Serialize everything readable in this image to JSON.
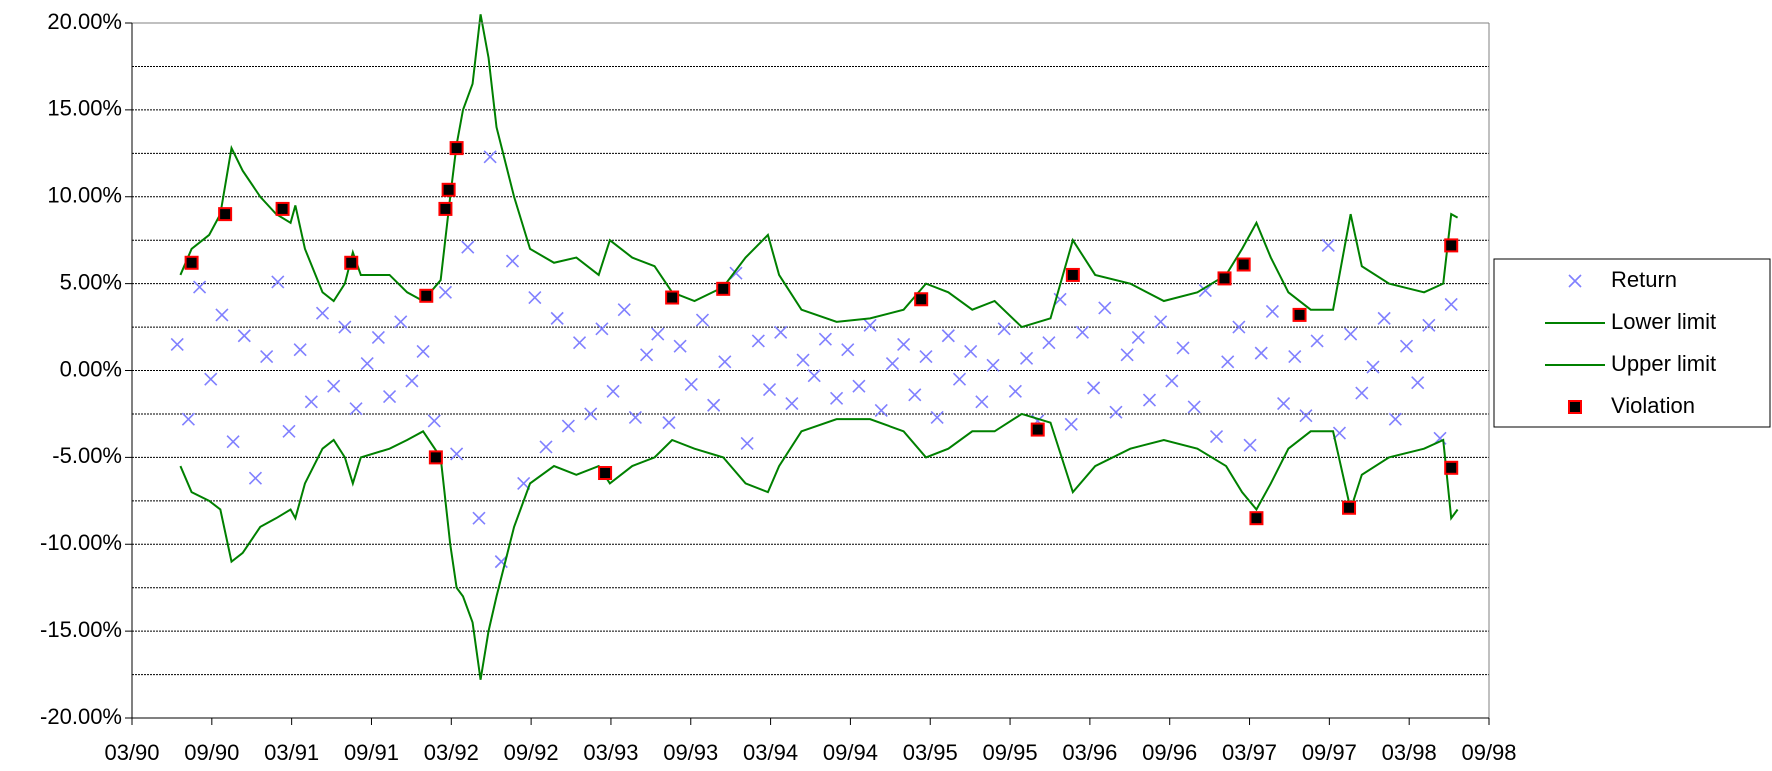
{
  "chart_data": {
    "type": "scatter",
    "xlim": [
      1990.1667,
      1998.6667
    ],
    "xticks": [
      {
        "value": 1990.1667,
        "label": "03/90"
      },
      {
        "value": 1990.6667,
        "label": "09/90"
      },
      {
        "value": 1991.1667,
        "label": "03/91"
      },
      {
        "value": 1991.6667,
        "label": "09/91"
      },
      {
        "value": 1992.1667,
        "label": "03/92"
      },
      {
        "value": 1992.6667,
        "label": "09/92"
      },
      {
        "value": 1993.1667,
        "label": "03/93"
      },
      {
        "value": 1993.6667,
        "label": "09/93"
      },
      {
        "value": 1994.1667,
        "label": "03/94"
      },
      {
        "value": 1994.6667,
        "label": "09/94"
      },
      {
        "value": 1995.1667,
        "label": "03/95"
      },
      {
        "value": 1995.6667,
        "label": "09/95"
      },
      {
        "value": 1996.1667,
        "label": "03/96"
      },
      {
        "value": 1996.6667,
        "label": "09/96"
      },
      {
        "value": 1997.1667,
        "label": "03/97"
      },
      {
        "value": 1997.6667,
        "label": "09/97"
      },
      {
        "value": 1998.1667,
        "label": "03/98"
      },
      {
        "value": 1998.6667,
        "label": "09/98"
      }
    ],
    "ylim": [
      -20,
      20
    ],
    "yticks": [
      {
        "value": 20,
        "label": "20.00%"
      },
      {
        "value": 15,
        "label": "15.00%"
      },
      {
        "value": 10,
        "label": "10.00%"
      },
      {
        "value": 5,
        "label": "5.00%"
      },
      {
        "value": 0,
        "label": "0.00%"
      },
      {
        "value": -5,
        "label": "-5.00%"
      },
      {
        "value": -10,
        "label": "-10.00%"
      },
      {
        "value": -15,
        "label": "-15.00%"
      },
      {
        "value": -20,
        "label": "-20.00%"
      }
    ],
    "minor_yticks": [
      17.5,
      12.5,
      7.5,
      2.5,
      -2.5,
      -7.5,
      -12.5,
      -17.5
    ],
    "grid": true,
    "legend": "right",
    "series": [
      {
        "name": "Return",
        "kind": "cross",
        "color": "#8080ff",
        "x": [
          1990.45,
          1990.52,
          1990.59,
          1990.66,
          1990.73,
          1990.8,
          1990.87,
          1990.94,
          1991.01,
          1991.08,
          1991.15,
          1991.22,
          1991.29,
          1991.36,
          1991.43,
          1991.5,
          1991.57,
          1991.64,
          1991.71,
          1991.78,
          1991.85,
          1991.92,
          1991.99,
          1992.06,
          1992.13,
          1992.2,
          1992.27,
          1992.34,
          1992.41,
          1992.48,
          1992.55,
          1992.62,
          1992.69,
          1992.76,
          1992.83,
          1992.9,
          1992.97,
          1993.04,
          1993.11,
          1993.18,
          1993.25,
          1993.32,
          1993.39,
          1993.46,
          1993.53,
          1993.6,
          1993.67,
          1993.74,
          1993.81,
          1993.88,
          1993.95,
          1994.02,
          1994.09,
          1994.16,
          1994.23,
          1994.3,
          1994.37,
          1994.44,
          1994.51,
          1994.58,
          1994.65,
          1994.72,
          1994.79,
          1994.86,
          1994.93,
          1995,
          1995.07,
          1995.14,
          1995.21,
          1995.28,
          1995.35,
          1995.42,
          1995.49,
          1995.56,
          1995.63,
          1995.7,
          1995.77,
          1995.84,
          1995.91,
          1995.98,
          1996.05,
          1996.12,
          1996.19,
          1996.26,
          1996.33,
          1996.4,
          1996.47,
          1996.54,
          1996.61,
          1996.68,
          1996.75,
          1996.82,
          1996.89,
          1996.96,
          1997.03,
          1997.1,
          1997.17,
          1997.24,
          1997.31,
          1997.38,
          1997.45,
          1997.52,
          1997.59,
          1997.66,
          1997.73,
          1997.8,
          1997.87,
          1997.94,
          1998.01,
          1998.08,
          1998.15,
          1998.22,
          1998.29,
          1998.36,
          1998.43
        ],
        "values": [
          1.5,
          -2.8,
          4.8,
          -0.5,
          3.2,
          -4.1,
          2.0,
          -6.2,
          0.8,
          5.1,
          -3.5,
          1.2,
          -1.8,
          3.3,
          -0.9,
          2.5,
          -2.2,
          0.4,
          1.9,
          -1.5,
          2.8,
          -0.6,
          1.1,
          -2.9,
          4.5,
          -4.8,
          7.1,
          -8.5,
          12.3,
          -11.0,
          6.3,
          -6.5,
          4.2,
          -4.4,
          3.0,
          -3.2,
          1.6,
          -2.5,
          2.4,
          -1.2,
          3.5,
          -2.7,
          0.9,
          2.1,
          -3.0,
          1.4,
          -0.8,
          2.9,
          -2.0,
          0.5,
          5.6,
          -4.2,
          1.7,
          -1.1,
          2.2,
          -1.9,
          0.6,
          -0.3,
          1.8,
          -1.6,
          1.2,
          -0.9,
          2.6,
          -2.3,
          0.4,
          1.5,
          -1.4,
          0.8,
          -2.7,
          2.0,
          -0.5,
          1.1,
          -1.8,
          0.3,
          2.4,
          -1.2,
          0.7,
          -2.9,
          1.6,
          4.1,
          -3.1,
          2.2,
          -1.0,
          3.6,
          -2.4,
          0.9,
          1.9,
          -1.7,
          2.8,
          -0.6,
          1.3,
          -2.1,
          4.6,
          -3.8,
          0.5,
          2.5,
          -4.3,
          1.0,
          3.4,
          -1.9,
          0.8,
          -2.6,
          1.7,
          7.2,
          -3.6,
          2.1,
          -1.3,
          0.2,
          3.0,
          -2.8,
          1.4,
          -0.7,
          2.6,
          -3.9,
          3.8
        ]
      },
      {
        "name": "Lower limit",
        "kind": "line",
        "color": "#008000",
        "x": [
          1990.47,
          1990.54,
          1990.65,
          1990.72,
          1990.79,
          1990.86,
          1990.97,
          1991.07,
          1991.16,
          1991.19,
          1991.25,
          1991.36,
          1991.43,
          1991.5,
          1991.55,
          1991.6,
          1991.78,
          1991.89,
          1991.99,
          1992.1,
          1992.16,
          1992.2,
          1992.24,
          1992.3,
          1992.35,
          1992.4,
          1992.45,
          1992.56,
          1992.66,
          1992.81,
          1992.95,
          1993.09,
          1993.16,
          1993.3,
          1993.44,
          1993.55,
          1993.69,
          1993.87,
          1994.01,
          1994.15,
          1994.22,
          1994.36,
          1994.58,
          1994.79,
          1995,
          1995.14,
          1995.28,
          1995.43,
          1995.57,
          1995.74,
          1995.92,
          1996.06,
          1996.2,
          1996.42,
          1996.63,
          1996.84,
          1997.02,
          1997.12,
          1997.21,
          1997.3,
          1997.41,
          1997.55,
          1997.69,
          1997.8,
          1997.87,
          1998.04,
          1998.26,
          1998.38,
          1998.43,
          1998.47
        ],
        "values": [
          -5.5,
          -7.0,
          -7.5,
          -8.0,
          -11.0,
          -10.5,
          -9.0,
          -8.5,
          -8.0,
          -8.5,
          -6.5,
          -4.5,
          -4.0,
          -5.0,
          -6.5,
          -5.0,
          -4.5,
          -4.0,
          -3.5,
          -5.0,
          -10.0,
          -12.5,
          -13.0,
          -14.5,
          -17.8,
          -15.0,
          -13.0,
          -9.0,
          -6.5,
          -5.5,
          -6.0,
          -5.5,
          -6.5,
          -5.5,
          -5.0,
          -4.0,
          -4.5,
          -5.0,
          -6.5,
          -7.0,
          -5.5,
          -3.5,
          -2.8,
          -2.8,
          -3.5,
          -5.0,
          -4.5,
          -3.5,
          -3.5,
          -2.5,
          -3.0,
          -7.0,
          -5.5,
          -4.5,
          -4.0,
          -4.5,
          -5.5,
          -7.0,
          -8.0,
          -6.5,
          -4.5,
          -3.5,
          -3.5,
          -8.0,
          -6.0,
          -5.0,
          -4.5,
          -4.0,
          -8.5,
          -8.0
        ]
      },
      {
        "name": "Upper limit",
        "kind": "line",
        "color": "#008000",
        "x": [
          1990.47,
          1990.54,
          1990.65,
          1990.72,
          1990.79,
          1990.86,
          1990.97,
          1991.07,
          1991.16,
          1991.19,
          1991.25,
          1991.36,
          1991.43,
          1991.5,
          1991.55,
          1991.6,
          1991.78,
          1991.89,
          1991.99,
          1992.1,
          1992.16,
          1992.2,
          1992.24,
          1992.3,
          1992.35,
          1992.4,
          1992.45,
          1992.56,
          1992.66,
          1992.81,
          1992.95,
          1993.09,
          1993.16,
          1993.3,
          1993.44,
          1993.55,
          1993.69,
          1993.87,
          1994.01,
          1994.15,
          1994.22,
          1994.36,
          1994.58,
          1994.79,
          1995,
          1995.14,
          1995.28,
          1995.43,
          1995.57,
          1995.74,
          1995.92,
          1996.06,
          1996.2,
          1996.42,
          1996.63,
          1996.84,
          1997.02,
          1997.12,
          1997.21,
          1997.3,
          1997.41,
          1997.55,
          1997.69,
          1997.8,
          1997.87,
          1998.04,
          1998.26,
          1998.38,
          1998.43,
          1998.47
        ],
        "values": [
          5.5,
          7.0,
          7.8,
          9.0,
          12.8,
          11.5,
          10.0,
          9.0,
          8.5,
          9.5,
          7.0,
          4.5,
          4.0,
          5.0,
          6.8,
          5.5,
          5.5,
          4.5,
          4.0,
          5.2,
          10.0,
          13.0,
          15.0,
          16.5,
          20.5,
          18.0,
          14.0,
          10.0,
          7.0,
          6.2,
          6.5,
          5.5,
          7.5,
          6.5,
          6.0,
          4.5,
          4.0,
          4.8,
          6.5,
          7.8,
          5.5,
          3.5,
          2.8,
          3.0,
          3.5,
          5.0,
          4.5,
          3.5,
          4.0,
          2.5,
          3.0,
          7.5,
          5.5,
          5.0,
          4.0,
          4.5,
          5.5,
          7.0,
          8.5,
          6.5,
          4.5,
          3.5,
          3.5,
          9.0,
          6.0,
          5.0,
          4.5,
          5.0,
          9.0,
          8.8
        ]
      },
      {
        "name": "Violation",
        "kind": "square",
        "color": "#000000",
        "edge_color": "#ff0000",
        "x": [
          1990.54,
          1990.75,
          1991.11,
          1991.54,
          1992.01,
          1992.07,
          1992.13,
          1992.15,
          1992.2,
          1993.13,
          1993.55,
          1993.87,
          1995.11,
          1995.84,
          1996.06,
          1997.01,
          1997.13,
          1997.21,
          1997.48,
          1997.79,
          1998.43,
          1998.43
        ],
        "values": [
          6.2,
          9.0,
          9.3,
          6.2,
          4.3,
          -5.0,
          9.3,
          10.4,
          12.8,
          -5.9,
          4.2,
          4.7,
          4.1,
          -3.4,
          5.5,
          5.3,
          6.1,
          -8.5,
          3.2,
          -7.9,
          7.2,
          -5.6
        ]
      }
    ]
  }
}
